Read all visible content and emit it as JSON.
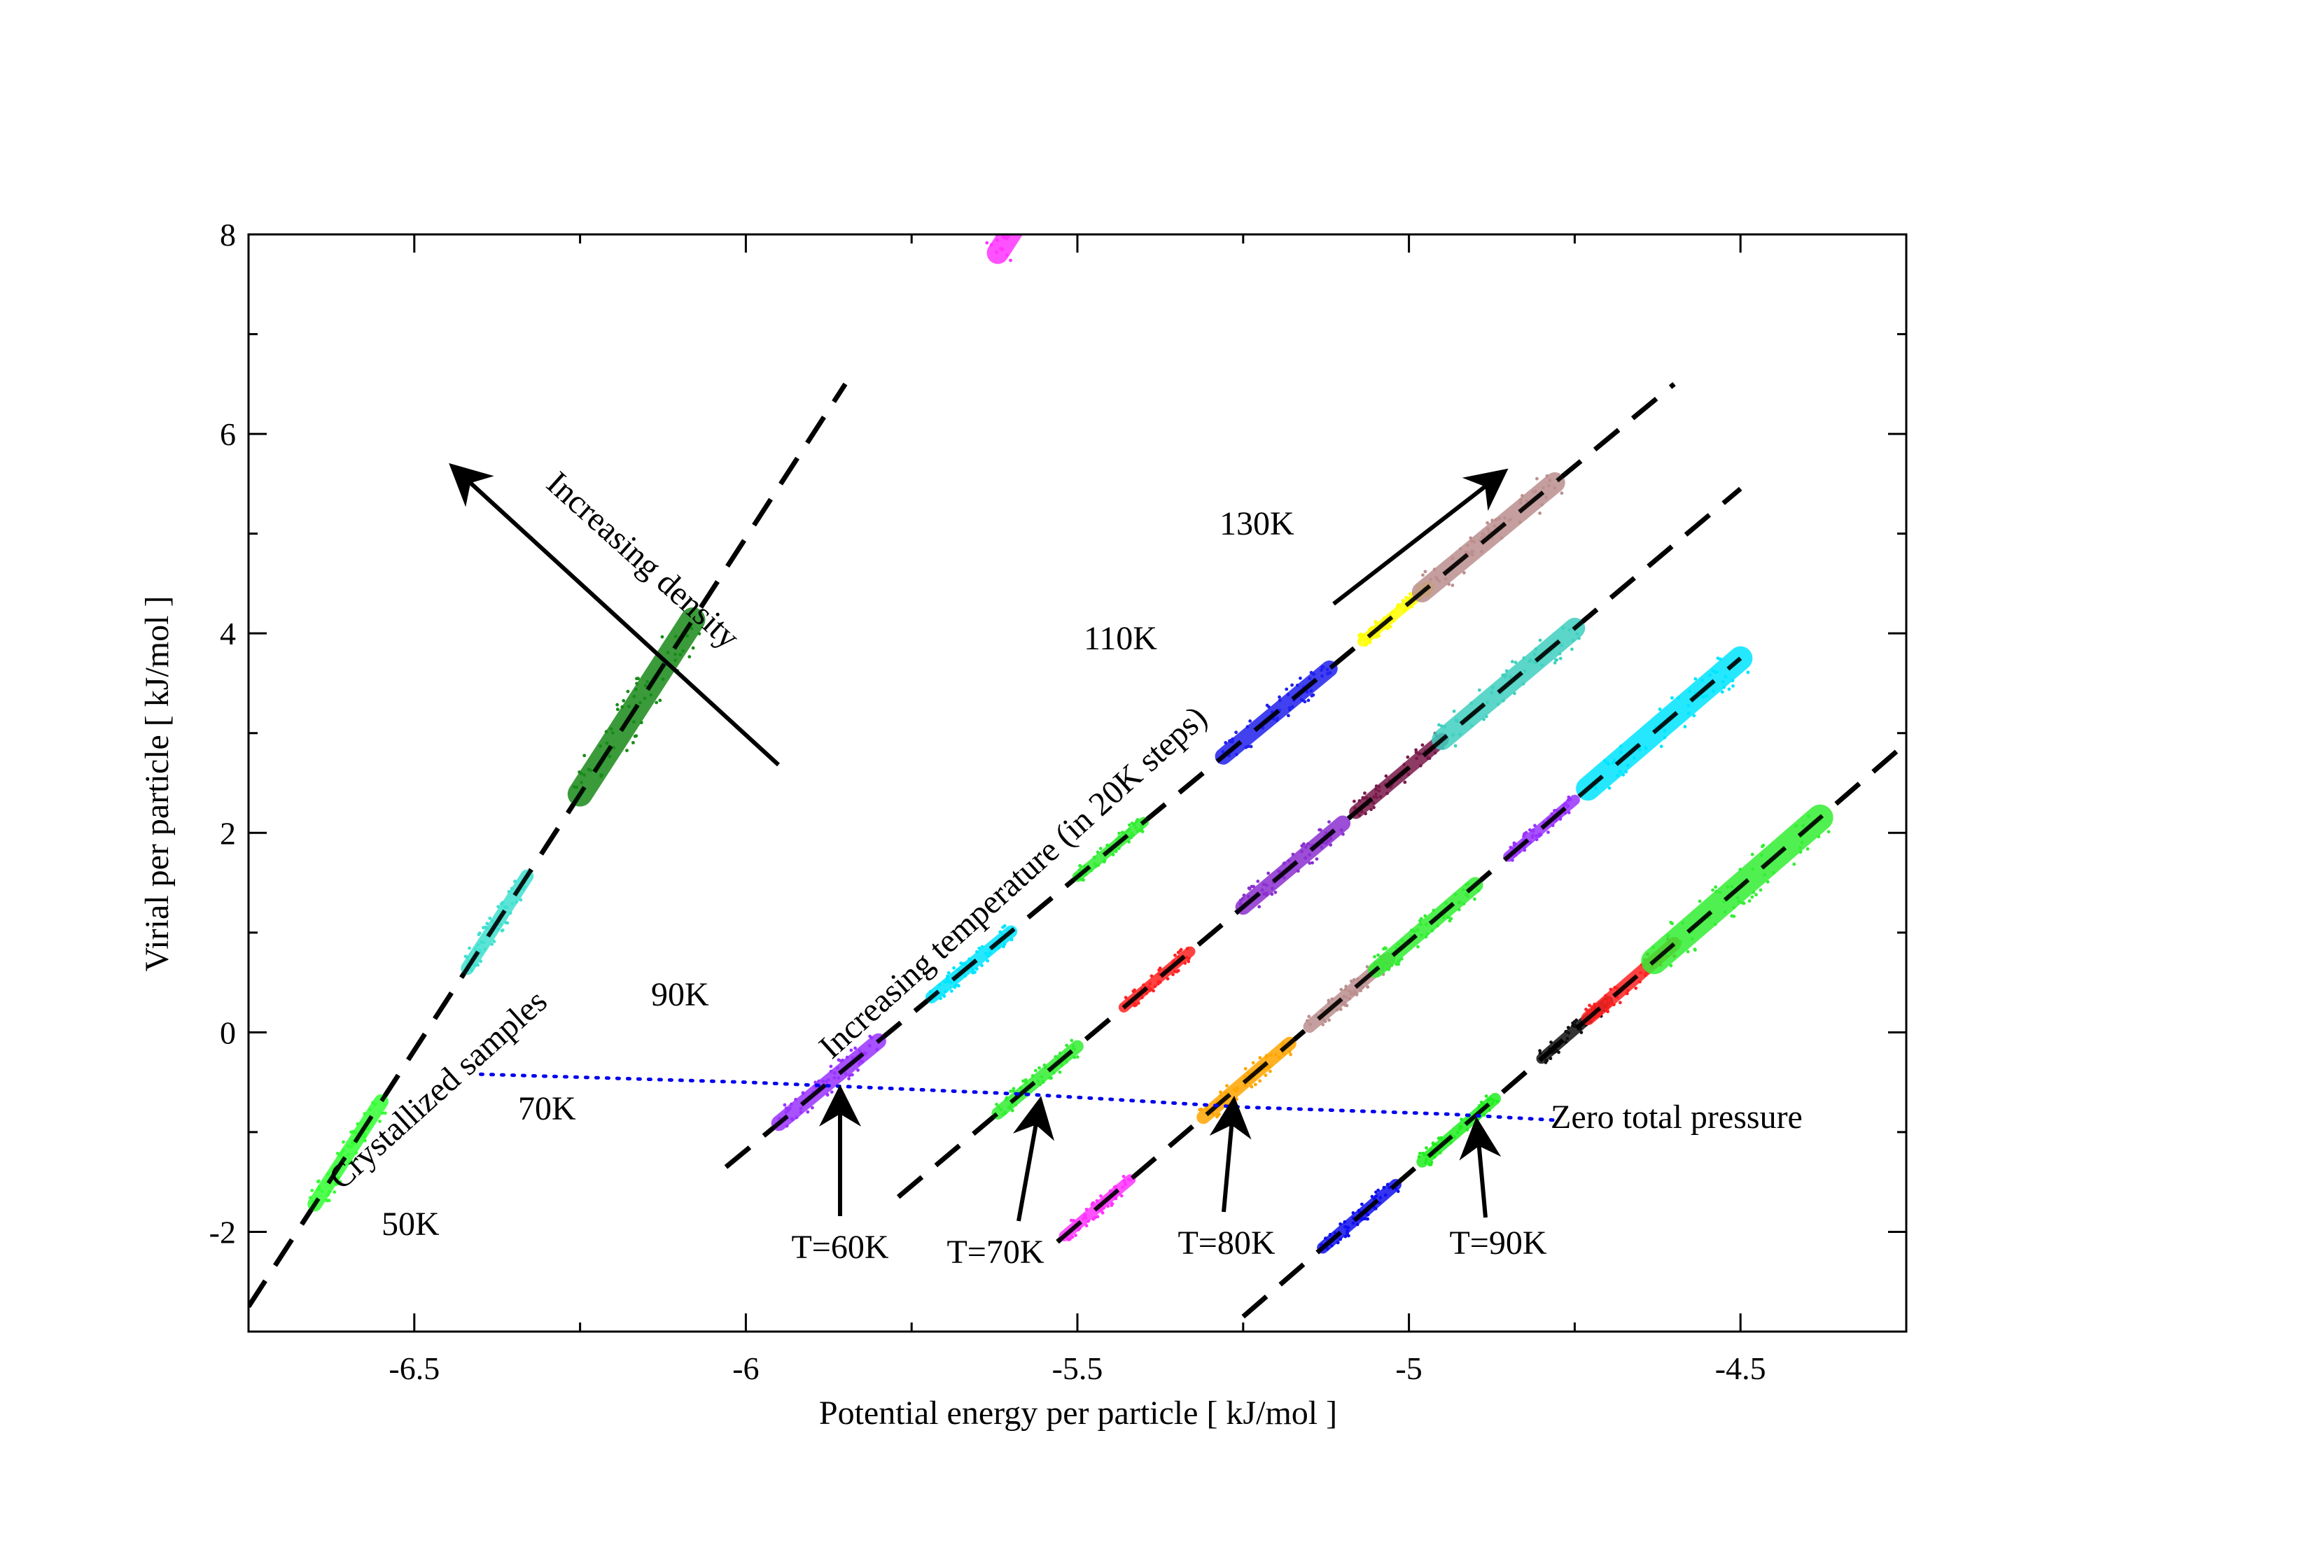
{
  "chart_data": {
    "type": "scatter",
    "xlabel": "Potential energy per particle [ kJ/mol ]",
    "ylabel": "Virial per particle [ kJ/mol ]",
    "xlim": [
      -6.75,
      -4.25
    ],
    "ylim": [
      -3,
      8
    ],
    "xticks": [
      -6.5,
      -6,
      -5.5,
      -5,
      -4.5
    ],
    "xtick_labels": [
      "-6.5",
      "-6",
      "-5.5",
      "-5",
      "-4.5"
    ],
    "yticks": [
      -2,
      0,
      2,
      4,
      6,
      8
    ],
    "ytick_labels": [
      "-2",
      "0",
      "2",
      "4",
      "6",
      "8"
    ],
    "grid": false,
    "isomorph_lines": [
      {
        "name": "isochore-1",
        "x": [
          -6.75,
          -5.85
        ],
        "y": [
          -2.75,
          6.5
        ]
      },
      {
        "name": "isochore-2",
        "x": [
          -6.03,
          -4.6
        ],
        "y": [
          -1.35,
          6.5
        ]
      },
      {
        "name": "isochore-3",
        "x": [
          -5.77,
          -4.5
        ],
        "y": [
          -1.65,
          5.45
        ]
      },
      {
        "name": "isochore-4",
        "x": [
          -5.53,
          -4.5
        ],
        "y": [
          -2.1,
          3.75
        ]
      },
      {
        "name": "isochore-5",
        "x": [
          -5.25,
          -4.25
        ],
        "y": [
          -2.85,
          2.9
        ]
      }
    ],
    "clusters": [
      {
        "name": "c-50K",
        "color": "#33ff33",
        "x": [
          -6.65,
          -6.55
        ]
      },
      {
        "name": "c-70K",
        "color": "#40e0d0",
        "x": [
          -6.42,
          -6.33
        ]
      },
      {
        "name": "c-90K",
        "color": "#1a8a1a",
        "x": [
          -6.25,
          -6.08
        ]
      },
      {
        "name": "c-110K",
        "color": "#ff33ff",
        "x": [
          -5.62,
          -5.47
        ]
      },
      {
        "name": "c-130K",
        "color": "#ffa500",
        "x": [
          -5.45,
          -5.3
        ]
      },
      {
        "name": "c-60K",
        "color": "#9933ff",
        "x": [
          -5.95,
          -5.8
        ]
      },
      {
        "name": "c-80K-s2",
        "color": "#00e5ff",
        "x": [
          -5.72,
          -5.6
        ]
      },
      {
        "name": "c-100K-s2",
        "color": "#33ee33",
        "x": [
          -5.5,
          -5.4
        ]
      },
      {
        "name": "c-120K-s2",
        "color": "#2020ee",
        "x": [
          -5.28,
          -5.12
        ]
      },
      {
        "name": "c-140K-s2",
        "color": "#ffff00",
        "x": [
          -5.07,
          -4.97
        ]
      },
      {
        "name": "c-160K-s2",
        "color": "#bc8f8f",
        "x": [
          -4.98,
          -4.78
        ]
      },
      {
        "name": "c-70K-s3",
        "color": "#33ee33",
        "x": [
          -5.62,
          -5.5
        ]
      },
      {
        "name": "c-90K-s3",
        "color": "#ff2222",
        "x": [
          -5.43,
          -5.33
        ]
      },
      {
        "name": "c-110K-s3",
        "color": "#8b30d0",
        "x": [
          -5.25,
          -5.1
        ]
      },
      {
        "name": "c-130K-s3",
        "color": "#7a1a4a",
        "x": [
          -5.08,
          -4.95
        ]
      },
      {
        "name": "c-150K-s3",
        "color": "#40d0c0",
        "x": [
          -4.95,
          -4.75
        ]
      },
      {
        "name": "c-70K-s4",
        "color": "#ff33ff",
        "x": [
          -5.52,
          -5.42
        ]
      },
      {
        "name": "c-80K-s4",
        "color": "#ffa500",
        "x": [
          -5.31,
          -5.18
        ]
      },
      {
        "name": "c-100K-s4",
        "color": "#bc8f8f",
        "x": [
          -5.15,
          -5.03
        ]
      },
      {
        "name": "c-120K-s4",
        "color": "#33ee33",
        "x": [
          -5.05,
          -4.9
        ]
      },
      {
        "name": "c-140K-s4",
        "color": "#9933ff",
        "x": [
          -4.85,
          -4.75
        ]
      },
      {
        "name": "c-160K-s4",
        "color": "#00e5ff",
        "x": [
          -4.73,
          -4.5
        ]
      },
      {
        "name": "c-80K-s5",
        "color": "#1010ee",
        "x": [
          -5.13,
          -5.02
        ]
      },
      {
        "name": "c-90K-s5",
        "color": "#22ee22",
        "x": [
          -4.98,
          -4.87
        ]
      },
      {
        "name": "c-110K-s5",
        "color": "#111111",
        "x": [
          -4.8,
          -4.7
        ]
      },
      {
        "name": "c-130K-s5",
        "color": "#ff2222",
        "x": [
          -4.73,
          -4.6
        ]
      },
      {
        "name": "c-150K-s5",
        "color": "#33ee33",
        "x": [
          -4.63,
          -4.38
        ]
      }
    ],
    "zero_pressure_line": {
      "color": "#0000ee",
      "x": [
        -6.4,
        -6.0,
        -5.58,
        -5.25,
        -4.94,
        -4.78
      ],
      "y": [
        -0.42,
        -0.5,
        -0.62,
        -0.75,
        -0.82,
        -0.88
      ]
    },
    "annotations": {
      "k50": "50K",
      "k70": "70K",
      "k90": "90K",
      "k110": "110K",
      "k130": "130K",
      "t60": "T=60K",
      "t70": "T=70K",
      "t80": "T=80K",
      "t90": "T=90K",
      "zero_pressure": "Zero total pressure",
      "crystallized": "Crystallized samples",
      "increasing_temperature": "Increasing temperature (in 20K steps)",
      "increasing_density": "Increasing density"
    }
  }
}
